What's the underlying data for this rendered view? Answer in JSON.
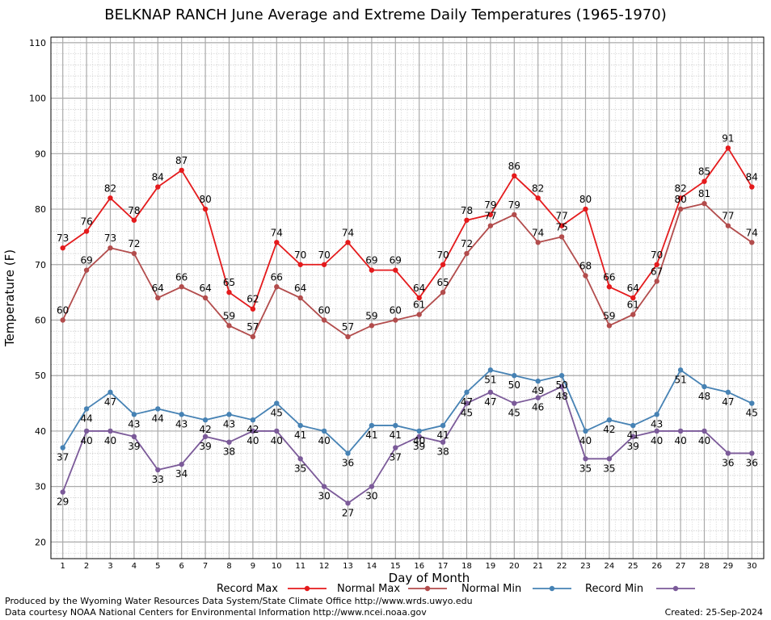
{
  "title": "BELKNAP RANCH June Average and Extreme Daily Temperatures (1965-1970)",
  "footer": {
    "produced_by": "Produced by the Wyoming Water Resources Data System/State Climate Office http://www.wrds.uwyo.edu",
    "courtesy": "Data courtesy NOAA National Centers for Environmental Information http://www.ncei.noaa.gov",
    "created": "Created:  25-Sep-2024"
  },
  "chart_data": {
    "type": "line",
    "xlabel": "Day of Month",
    "ylabel": "Temperature (F)",
    "x": [
      1,
      2,
      3,
      4,
      5,
      6,
      7,
      8,
      9,
      10,
      11,
      12,
      13,
      14,
      15,
      16,
      17,
      18,
      19,
      20,
      21,
      22,
      23,
      24,
      25,
      26,
      27,
      28,
      29,
      30
    ],
    "xlim": [
      0.5,
      30.5
    ],
    "ylim": [
      17,
      111
    ],
    "yticks": [
      20,
      30,
      40,
      50,
      60,
      70,
      80,
      90,
      100,
      110
    ],
    "grid": true,
    "legend_position": "bottom",
    "series": [
      {
        "name": "Record Max",
        "color": "#e41a1c",
        "values": [
          73,
          76,
          82,
          78,
          84,
          87,
          80,
          65,
          62,
          74,
          70,
          70,
          74,
          69,
          69,
          64,
          70,
          78,
          79,
          86,
          82,
          77,
          80,
          66,
          64,
          70,
          82,
          85,
          91,
          84
        ]
      },
      {
        "name": "Normal Max",
        "color": "#b24c4c",
        "values": [
          60,
          69,
          73,
          72,
          64,
          66,
          64,
          59,
          57,
          66,
          64,
          60,
          57,
          59,
          60,
          61,
          65,
          72,
          77,
          79,
          74,
          75,
          68,
          59,
          61,
          67,
          80,
          81,
          77,
          74
        ]
      },
      {
        "name": "Normal Min",
        "color": "#4682b4",
        "values": [
          37,
          44,
          47,
          43,
          44,
          43,
          42,
          43,
          42,
          45,
          41,
          40,
          36,
          41,
          41,
          40,
          41,
          47,
          51,
          50,
          49,
          50,
          40,
          42,
          41,
          43,
          51,
          48,
          47,
          45
        ]
      },
      {
        "name": "Record Min",
        "color": "#7b5a99",
        "values": [
          29,
          40,
          40,
          39,
          33,
          34,
          39,
          38,
          40,
          40,
          35,
          30,
          27,
          30,
          37,
          39,
          38,
          45,
          47,
          45,
          46,
          48,
          35,
          35,
          39,
          40,
          40,
          40,
          36,
          36
        ]
      }
    ]
  }
}
